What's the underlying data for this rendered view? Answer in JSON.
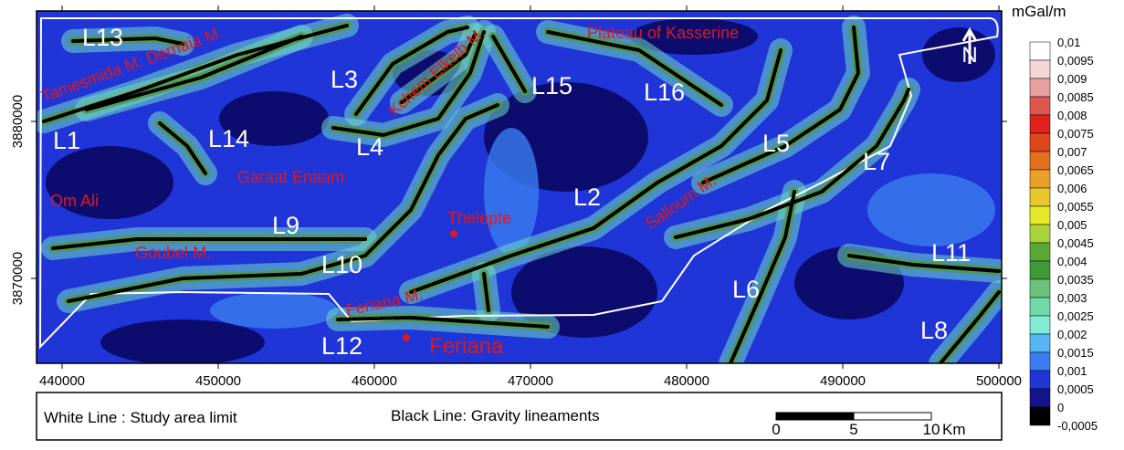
{
  "map": {
    "x_ticks": [
      440000,
      450000,
      460000,
      470000,
      480000,
      490000,
      500000
    ],
    "y_ticks": [
      3870000,
      3880000
    ],
    "north": "N",
    "labels": [
      {
        "text": "L13",
        "color": "#ffffff"
      },
      {
        "text": "Tamesmida M. Dernaia M.",
        "color": "#e0191b"
      },
      {
        "text": "L3",
        "color": "#ffffff"
      },
      {
        "text": "Kchem Elkelb M.",
        "color": "#e0191b"
      },
      {
        "text": "L15",
        "color": "#ffffff"
      },
      {
        "text": "L16",
        "color": "#ffffff"
      },
      {
        "text": "Plateau of Kasserine",
        "color": "#e0191b"
      },
      {
        "text": "L1",
        "color": "#ffffff"
      },
      {
        "text": "L14",
        "color": "#ffffff"
      },
      {
        "text": "L4",
        "color": "#ffffff"
      },
      {
        "text": "Garaat Enaam",
        "color": "#e0191b"
      },
      {
        "text": "Om Ali",
        "color": "#e0191b"
      },
      {
        "text": "L2",
        "color": "#ffffff"
      },
      {
        "text": "Salloum M.",
        "color": "#e0191b"
      },
      {
        "text": "L5",
        "color": "#ffffff"
      },
      {
        "text": "L7",
        "color": "#ffffff"
      },
      {
        "text": "Thelepte",
        "color": "#e0191b"
      },
      {
        "text": "L9",
        "color": "#ffffff"
      },
      {
        "text": "Goubel M.",
        "color": "#e0191b"
      },
      {
        "text": "L10",
        "color": "#ffffff"
      },
      {
        "text": "L11",
        "color": "#ffffff"
      },
      {
        "text": "Feriana M.",
        "color": "#e0191b"
      },
      {
        "text": "L6",
        "color": "#ffffff"
      },
      {
        "text": "L8",
        "color": "#ffffff"
      },
      {
        "text": "L12",
        "color": "#ffffff"
      },
      {
        "text": "Feriana",
        "color": "#e0191b"
      }
    ],
    "colorbar": {
      "unit": "mGal/m",
      "labels": [
        "0,01",
        "0,0095",
        "0,009",
        "0,0085",
        "0,008",
        "0,0075",
        "0,007",
        "0,0065",
        "0,006",
        "0,0055",
        "0,005",
        "0,0045",
        "0,004",
        "0,0035",
        "0,003",
        "0,0025",
        "0,002",
        "0,0015",
        "0,001",
        "0,0005",
        "0",
        "-0,0005"
      ],
      "colors": [
        "#ffffff",
        "#f3d6d6",
        "#e9a0a0",
        "#e0564f",
        "#e0201c",
        "#e0461c",
        "#e0701c",
        "#e9a12a",
        "#e6c82a",
        "#e6e82a",
        "#a9d43a",
        "#5aa836",
        "#3f9a36",
        "#6bc27a",
        "#6fd9a8",
        "#80ecd6",
        "#56b4f0",
        "#3a7df0",
        "#1f35d8",
        "#14148a",
        "#000000"
      ]
    },
    "legend": {
      "white_line": "White Line : Study area limit",
      "black_line": "Black Line: Gravity lineaments"
    },
    "scale": {
      "ticks": [
        0,
        5,
        10
      ],
      "unit": "Km"
    }
  }
}
